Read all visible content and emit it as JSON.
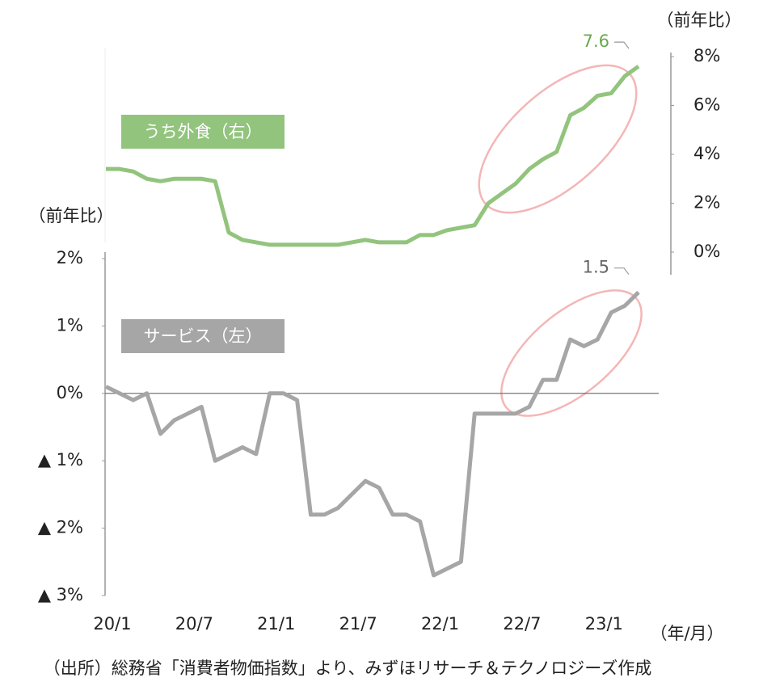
{
  "chart_data": {
    "type": "line",
    "categories": [
      "20/1",
      null,
      null,
      null,
      null,
      null,
      "20/7",
      null,
      null,
      null,
      null,
      null,
      "21/1",
      null,
      null,
      null,
      null,
      null,
      "21/7",
      null,
      null,
      null,
      null,
      null,
      "22/1",
      null,
      null,
      null,
      null,
      null,
      "22/7",
      null,
      null,
      null,
      null,
      null,
      "23/1",
      null,
      null,
      null
    ],
    "series": [
      {
        "name": "うち外食（右）",
        "color": "#92c47d",
        "axis": "y2",
        "values": [
          3.4,
          3.4,
          3.3,
          3.0,
          2.9,
          3.0,
          3.0,
          3.0,
          2.9,
          0.8,
          0.5,
          0.4,
          0.3,
          0.3,
          0.3,
          0.3,
          0.3,
          0.3,
          0.4,
          0.5,
          0.4,
          0.4,
          0.4,
          0.7,
          0.7,
          0.9,
          1.0,
          1.1,
          2.0,
          2.4,
          2.8,
          3.4,
          3.8,
          4.1,
          5.6,
          5.9,
          6.4,
          6.5,
          7.2,
          7.6
        ]
      },
      {
        "name": "サービス（左）",
        "color": "#a6a6a6",
        "values": [
          0.1,
          0,
          -0.1,
          0,
          -0.6,
          -0.4,
          -0.3,
          -0.2,
          -1.0,
          -0.9,
          -0.8,
          -0.9,
          0,
          0,
          -0.1,
          -1.8,
          -1.8,
          -1.7,
          -1.5,
          -1.3,
          -1.4,
          -1.8,
          -1.8,
          -1.9,
          -2.7,
          -2.6,
          -2.5,
          -0.3,
          -0.3,
          -0.3,
          -0.3,
          -0.2,
          0.2,
          0.2,
          0.8,
          0.7,
          0.8,
          1.2,
          1.3,
          1.5
        ]
      }
    ],
    "ylim": [
      -3,
      2
    ],
    "yticks": [
      {
        "value": 2,
        "label": "2%"
      },
      {
        "value": 1,
        "label": "1%"
      },
      {
        "value": 0,
        "label": "0%"
      },
      {
        "value": -1,
        "label": "▲ 1%"
      },
      {
        "value": -2,
        "label": "▲ 2%"
      },
      {
        "value": -3,
        "label": "▲ 3%"
      }
    ],
    "y2lim": [
      0,
      8
    ],
    "y2ticks": [
      {
        "value": 8,
        "label": "8%"
      },
      {
        "value": 6,
        "label": "6%"
      },
      {
        "value": 4,
        "label": "4%"
      },
      {
        "value": 2,
        "label": "2%"
      },
      {
        "value": 0,
        "label": "0%"
      }
    ],
    "y_label": "（前年比）",
    "y2_label": "（前年比）",
    "x_label": "（年/月）",
    "source": "（出所）総務省「消費者物価指数」より、みずほリサーチ＆テクノロジーズ作成"
  }
}
